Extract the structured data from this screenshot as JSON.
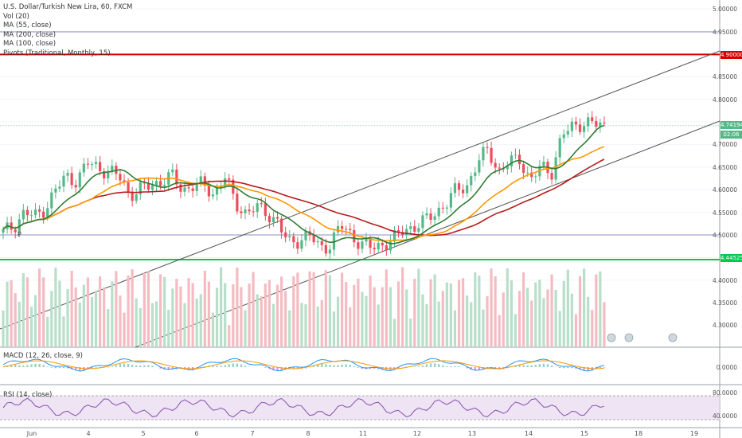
{
  "legend": {
    "title": "U.S. Dollar/Turkish New Lira, 60, FXCM",
    "lines": [
      "Vol (20)",
      "MA (55, close)",
      "MA (200, close)",
      "MA (100, close)",
      "Pivots (Traditional, Monthly, 15)"
    ]
  },
  "panels": {
    "macd_label": "MACD (12, 26, close, 9)",
    "rsi_label": "RSI (14, close)"
  },
  "pivot_label": "P",
  "y_axis_ticks": [
    "5.00000",
    "4.95000",
    "4.90000",
    "4.85000",
    "4.80000",
    "4.75000",
    "4.70000",
    "4.65000",
    "4.60000",
    "4.55000",
    "4.50000",
    "4.45000",
    "4.40000",
    "4.35000",
    "4.30000"
  ],
  "price_tags": {
    "red": "4.90000",
    "last": "4.74194",
    "timer": "02:06",
    "green": "4.44525"
  },
  "macd_axis": "0.0000",
  "rsi_axis": [
    "80.0000",
    "40.0000"
  ],
  "x_axis_labels": [
    "Jun",
    "4",
    "5",
    "6",
    "7",
    "8",
    "11",
    "12",
    "13",
    "14",
    "15",
    "18",
    "19"
  ],
  "colors": {
    "up": "#53b987",
    "down": "#eb4d5c",
    "ma55": "#2e7d32",
    "ma100": "#ff9800",
    "ma200": "#b71c1c",
    "red_level": "#d50000",
    "green_level": "#00c853",
    "pivot": "#8e8ec9",
    "rsi_band": "#e7d9f0"
  },
  "chart_data": {
    "type": "candlestick",
    "title": "U.S. Dollar/Turkish New Lira, 60, FXCM",
    "ylim": [
      4.26,
      5.02
    ],
    "horizontal_levels": [
      4.9,
      4.95,
      4.5,
      4.44525
    ],
    "last_price": 4.74194,
    "close_path": [
      4.505,
      4.52,
      4.55,
      4.54,
      4.56,
      4.6,
      4.63,
      4.62,
      4.66,
      4.65,
      4.64,
      4.63,
      4.59,
      4.6,
      4.61,
      4.62,
      4.63,
      4.6,
      4.61,
      4.61,
      4.59,
      4.63,
      4.57,
      4.55,
      4.56,
      4.55,
      4.53,
      4.48,
      4.49,
      4.5,
      4.47,
      4.48,
      4.52,
      4.5,
      4.48,
      4.47,
      4.48,
      4.49,
      4.51,
      4.52,
      4.53,
      4.55,
      4.57,
      4.6,
      4.61,
      4.66,
      4.69,
      4.64,
      4.66,
      4.67,
      4.62,
      4.65,
      4.64,
      4.72,
      4.74,
      4.75,
      4.745,
      4.742
    ]
  }
}
